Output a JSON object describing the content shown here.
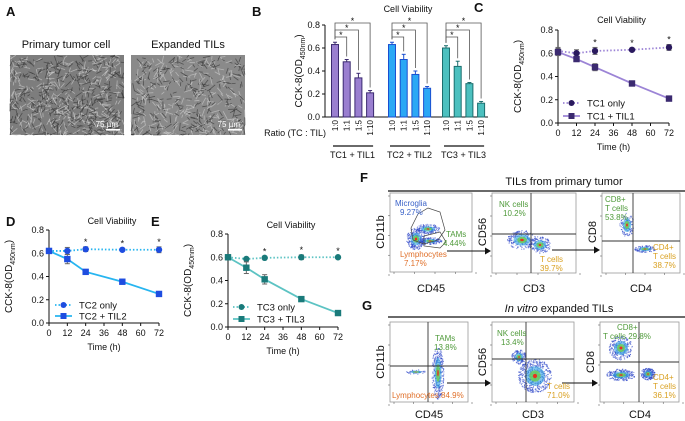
{
  "panel_a": {
    "label": "A",
    "images": [
      {
        "title": "Primary tumor cell",
        "scale_bar": "75 µm"
      },
      {
        "title": "Expanded TILs",
        "scale_bar": "75 µm"
      }
    ]
  },
  "panel_f": {
    "label": "F",
    "title": "TILs from primary tumor",
    "plots": [
      {
        "y_axis": "CD11b",
        "x_axis": "CD45",
        "gates": [
          "Microglia",
          "9.27%",
          "TAMs",
          "4.44%",
          "Lymphocytes",
          "7.17%"
        ]
      },
      {
        "y_axis": "CD56",
        "x_axis": "CD3",
        "gates": [
          "NK cells",
          "10.2%",
          "T cells",
          "39.7%"
        ]
      },
      {
        "y_axis": "CD8",
        "x_axis": "CD4",
        "gates": [
          "CD8+",
          "T cells",
          "53.8%",
          "CD4+",
          "T cells",
          "38.7%"
        ]
      }
    ]
  },
  "panel_g": {
    "label": "G",
    "title_italic": "In vitro",
    "title_rest": " expanded TILs",
    "plots": [
      {
        "y_axis": "CD11b",
        "x_axis": "CD45",
        "gates": [
          "TAMs",
          "13.8%",
          "Lymphocytes 84.9%"
        ]
      },
      {
        "y_axis": "CD56",
        "x_axis": "CD3",
        "gates": [
          "NK cells",
          "13.4%",
          "T cells",
          "71.0%"
        ]
      },
      {
        "y_axis": "CD8",
        "x_axis": "CD4",
        "gates": [
          "CD8+",
          "T cells 29.8%",
          "CD4+",
          "T cells",
          "36.1%"
        ]
      }
    ]
  },
  "colors": {
    "microglia": "#3a62c8",
    "tams": "#4f9a3a",
    "lymphocytes": "#e0702a",
    "tcells": "#d9a020",
    "nk": "#4f9a3a"
  },
  "chart_data": [
    {
      "panel": "B",
      "type": "bar",
      "title": "Cell Viability",
      "ylabel": "CCK-8(OD450nm)",
      "ylabel_main": "CCK-8(OD",
      "ylabel_sub": "450nm",
      "ylabel_end": ")",
      "xlabel": "Ratio (TC : TIL)",
      "ylim": [
        0,
        0.8
      ],
      "yticks": [
        "0.0",
        "0.2",
        "0.4",
        "0.6",
        "0.8"
      ],
      "categories": [
        "1:0",
        "1:1",
        "1:5",
        "1:10"
      ],
      "significance": "*",
      "groups": [
        {
          "name": "TC1 + TIL1",
          "values": [
            0.63,
            0.48,
            0.34,
            0.21
          ],
          "errors": [
            0.02,
            0.02,
            0.04,
            0.02
          ],
          "fill": "#9a7fd0",
          "stroke": "#3b2a70"
        },
        {
          "name": "TC2 + TIL2",
          "values": [
            0.63,
            0.5,
            0.37,
            0.25
          ],
          "errors": [
            0.02,
            0.045,
            0.03,
            0.015
          ],
          "fill": "#2ba8f5",
          "stroke": "#1a4fd0"
        },
        {
          "name": "TC3 + TIL3",
          "values": [
            0.6,
            0.44,
            0.29,
            0.12
          ],
          "errors": [
            0.02,
            0.045,
            0.01,
            0.015
          ],
          "fill": "#4cc0bf",
          "stroke": "#1c6e6e"
        }
      ]
    },
    {
      "panel": "C",
      "type": "line",
      "title": "Cell Viability",
      "xlabel": "Time (h)",
      "ylabel_main": "CCK-8(OD",
      "ylabel_sub": "450nm",
      "ylabel_end": ")",
      "x": [
        0,
        12,
        24,
        48,
        72
      ],
      "xticks": [
        "0",
        "12",
        "24",
        "36",
        "48",
        "60",
        "72"
      ],
      "xlim": [
        0,
        72
      ],
      "yticks": [
        "0.0",
        "0.2",
        "0.4",
        "0.6",
        "0.8"
      ],
      "ylim": [
        0,
        0.8
      ],
      "stars_at": [
        24,
        48,
        72
      ],
      "star": "*",
      "series": [
        {
          "name": "TC1 only",
          "values": [
            0.62,
            0.6,
            0.62,
            0.63,
            0.65
          ],
          "errors": [
            0.03,
            0.03,
            0.03,
            0.015,
            0.025
          ],
          "marker": "circle",
          "dash": "dotted",
          "line": "#9c84d6",
          "marker_color": "#2a1a5e"
        },
        {
          "name": "TC1 + TIL1",
          "values": [
            0.61,
            0.55,
            0.48,
            0.34,
            0.21
          ],
          "errors": [
            0.03,
            0.015,
            0.03,
            0.01,
            0.01
          ],
          "marker": "square",
          "dash": "solid",
          "line": "#9c84d6",
          "marker_color": "#3b2a70"
        }
      ]
    },
    {
      "panel": "D",
      "type": "line",
      "title": "Cell Viability",
      "xlabel": "Time (h)",
      "ylabel_main": "CCK-8(OD",
      "ylabel_sub": "450nm",
      "ylabel_end": ")",
      "x": [
        0,
        12,
        24,
        48,
        72
      ],
      "xticks": [
        "0",
        "12",
        "24",
        "36",
        "48",
        "60",
        "72"
      ],
      "xlim": [
        0,
        72
      ],
      "yticks": [
        "0.0",
        "0.2",
        "0.4",
        "0.6",
        "0.8"
      ],
      "ylim": [
        0,
        0.8
      ],
      "stars_at": [
        24,
        48,
        72
      ],
      "star": "*",
      "series": [
        {
          "name": "TC2 only",
          "values": [
            0.62,
            0.62,
            0.635,
            0.63,
            0.63
          ],
          "errors": [
            0.02,
            0.03,
            0.02,
            0.01,
            0.025
          ],
          "marker": "circle",
          "dash": "dotted",
          "line": "#27b5f0",
          "marker_color": "#1e4de0"
        },
        {
          "name": "TC2 + TIL2",
          "values": [
            0.62,
            0.55,
            0.44,
            0.355,
            0.25
          ],
          "errors": [
            0.02,
            0.04,
            0.01,
            0.02,
            0.01
          ],
          "marker": "square",
          "dash": "solid",
          "line": "#27b5f0",
          "marker_color": "#1e4de0"
        }
      ]
    },
    {
      "panel": "E",
      "type": "line",
      "title": "Cell Viability",
      "xlabel": "Time (h)",
      "ylabel_main": "CCK-8(OD",
      "ylabel_sub": "450nm",
      "ylabel_end": ")",
      "x": [
        0,
        12,
        24,
        48,
        72
      ],
      "xticks": [
        "0",
        "12",
        "24",
        "36",
        "48",
        "60",
        "72"
      ],
      "xlim": [
        0,
        72
      ],
      "yticks": [
        "0.0",
        "0.2",
        "0.4",
        "0.6",
        "0.8"
      ],
      "ylim": [
        0,
        0.8
      ],
      "stars_at": [
        24,
        48,
        72
      ],
      "star": "*",
      "series": [
        {
          "name": "TC3 only",
          "values": [
            0.6,
            0.585,
            0.595,
            0.6,
            0.6
          ],
          "errors": [
            0.01,
            0.01,
            0.01,
            0.02,
            0.01
          ],
          "marker": "circle",
          "dash": "dotted",
          "line": "#5cc3c3",
          "marker_color": "#1a7a7a"
        },
        {
          "name": "TC3 + TIL3",
          "values": [
            0.6,
            0.51,
            0.41,
            0.24,
            0.12
          ],
          "errors": [
            0.02,
            0.05,
            0.04,
            0.01,
            0.01
          ],
          "marker": "square",
          "dash": "solid",
          "line": "#5cc3c3",
          "marker_color": "#1a7a7a"
        }
      ]
    }
  ]
}
